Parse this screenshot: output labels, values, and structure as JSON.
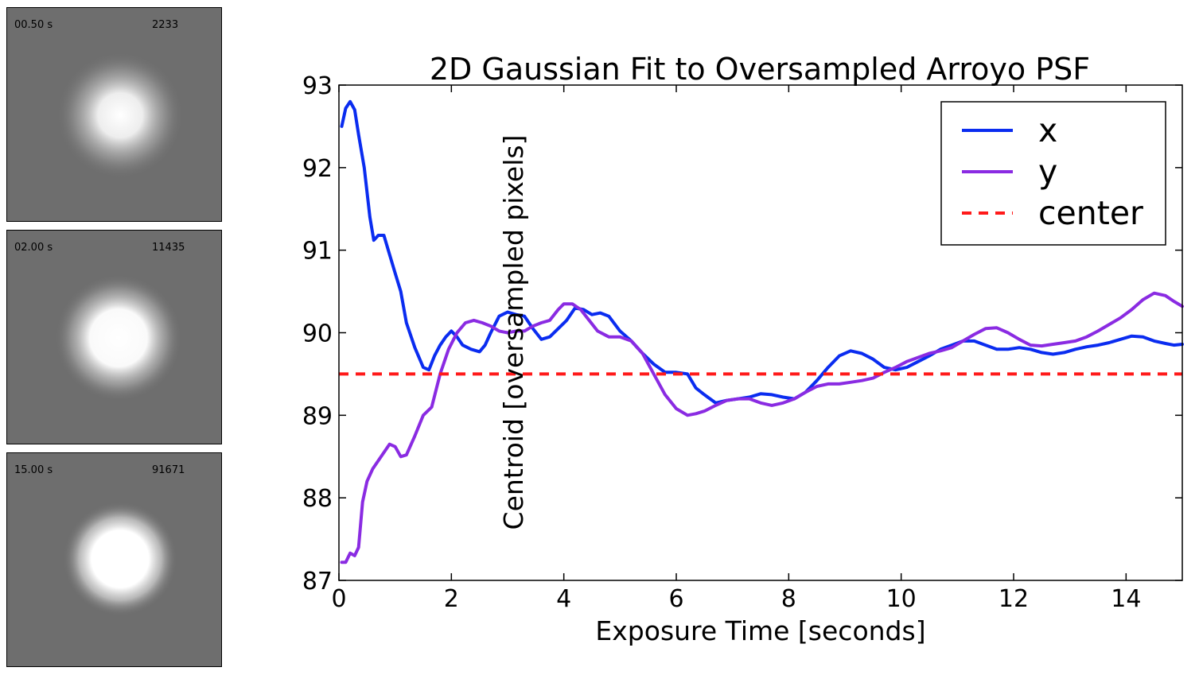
{
  "psf_panels": [
    {
      "time": "00.50 s",
      "count": "2233"
    },
    {
      "time": "02.00 s",
      "count": "11435"
    },
    {
      "time": "15.00 s",
      "count": "91671"
    }
  ],
  "chart_data": {
    "type": "line",
    "title": "2D Gaussian Fit to Oversampled Arroyo PSF",
    "xlabel": "Exposure Time [seconds]",
    "ylabel": "Centroid [oversampled pixels]",
    "xlim": [
      0,
      15
    ],
    "ylim": [
      87,
      93
    ],
    "xticks": [
      0,
      2,
      4,
      6,
      8,
      10,
      12,
      14
    ],
    "yticks": [
      87,
      88,
      89,
      90,
      91,
      92,
      93
    ],
    "grid": false,
    "legend_position": "top-right",
    "series": [
      {
        "name": "x",
        "color": "#0a2cf0",
        "style": "solid",
        "x": [
          0.05,
          0.12,
          0.2,
          0.28,
          0.35,
          0.45,
          0.55,
          0.62,
          0.7,
          0.8,
          0.9,
          1.0,
          1.1,
          1.2,
          1.35,
          1.5,
          1.6,
          1.7,
          1.8,
          1.9,
          2.0,
          2.1,
          2.2,
          2.35,
          2.5,
          2.6,
          2.7,
          2.85,
          3.0,
          3.15,
          3.3,
          3.45,
          3.6,
          3.75,
          3.9,
          4.05,
          4.2,
          4.35,
          4.5,
          4.65,
          4.8,
          5.0,
          5.2,
          5.4,
          5.6,
          5.8,
          6.0,
          6.2,
          6.35,
          6.5,
          6.7,
          6.9,
          7.1,
          7.3,
          7.5,
          7.7,
          7.9,
          8.1,
          8.3,
          8.5,
          8.7,
          8.9,
          9.1,
          9.3,
          9.5,
          9.7,
          9.9,
          10.1,
          10.3,
          10.5,
          10.7,
          10.9,
          11.1,
          11.3,
          11.5,
          11.7,
          11.9,
          12.1,
          12.3,
          12.5,
          12.7,
          12.9,
          13.1,
          13.3,
          13.5,
          13.7,
          13.9,
          14.1,
          14.3,
          14.5,
          14.7,
          14.85,
          15.0
        ],
        "y": [
          92.5,
          92.72,
          92.8,
          92.7,
          92.4,
          92.0,
          91.4,
          91.12,
          91.18,
          91.18,
          90.95,
          90.72,
          90.5,
          90.12,
          89.82,
          89.58,
          89.55,
          89.72,
          89.85,
          89.95,
          90.02,
          89.95,
          89.85,
          89.8,
          89.77,
          89.85,
          90.0,
          90.2,
          90.25,
          90.22,
          90.2,
          90.05,
          89.92,
          89.95,
          90.05,
          90.15,
          90.3,
          90.28,
          90.22,
          90.24,
          90.2,
          90.02,
          89.9,
          89.75,
          89.62,
          89.52,
          89.52,
          89.5,
          89.33,
          89.25,
          89.15,
          89.18,
          89.2,
          89.22,
          89.26,
          89.25,
          89.22,
          89.2,
          89.28,
          89.42,
          89.58,
          89.72,
          89.78,
          89.75,
          89.68,
          89.58,
          89.55,
          89.58,
          89.65,
          89.72,
          89.8,
          89.85,
          89.9,
          89.9,
          89.85,
          89.8,
          89.8,
          89.82,
          89.8,
          89.76,
          89.74,
          89.76,
          89.8,
          89.83,
          89.85,
          89.88,
          89.92,
          89.96,
          89.95,
          89.9,
          89.87,
          89.85,
          89.86
        ]
      },
      {
        "name": "y",
        "color": "#8a2be2",
        "style": "solid",
        "x": [
          0.05,
          0.12,
          0.2,
          0.28,
          0.35,
          0.42,
          0.5,
          0.6,
          0.7,
          0.8,
          0.9,
          1.0,
          1.1,
          1.2,
          1.35,
          1.5,
          1.65,
          1.8,
          1.95,
          2.1,
          2.25,
          2.4,
          2.55,
          2.7,
          2.85,
          3.0,
          3.15,
          3.3,
          3.45,
          3.6,
          3.75,
          3.9,
          4.0,
          4.15,
          4.3,
          4.45,
          4.6,
          4.8,
          5.0,
          5.2,
          5.4,
          5.6,
          5.8,
          6.0,
          6.2,
          6.35,
          6.5,
          6.7,
          6.9,
          7.1,
          7.3,
          7.5,
          7.7,
          7.9,
          8.1,
          8.3,
          8.5,
          8.7,
          8.9,
          9.1,
          9.3,
          9.5,
          9.7,
          9.9,
          10.1,
          10.3,
          10.5,
          10.7,
          10.9,
          11.1,
          11.3,
          11.5,
          11.7,
          11.9,
          12.1,
          12.3,
          12.5,
          12.7,
          12.9,
          13.1,
          13.3,
          13.5,
          13.7,
          13.9,
          14.1,
          14.3,
          14.5,
          14.7,
          14.85,
          15.0
        ],
        "y": [
          87.22,
          87.22,
          87.33,
          87.3,
          87.4,
          87.95,
          88.2,
          88.35,
          88.45,
          88.55,
          88.65,
          88.62,
          88.5,
          88.52,
          88.75,
          89.0,
          89.1,
          89.5,
          89.8,
          90.0,
          90.12,
          90.15,
          90.12,
          90.08,
          90.02,
          90.0,
          90.02,
          90.02,
          90.08,
          90.12,
          90.15,
          90.28,
          90.35,
          90.35,
          90.28,
          90.15,
          90.02,
          89.95,
          89.95,
          89.9,
          89.75,
          89.5,
          89.25,
          89.08,
          89.0,
          89.02,
          89.05,
          89.12,
          89.18,
          89.2,
          89.2,
          89.15,
          89.12,
          89.15,
          89.2,
          89.28,
          89.35,
          89.38,
          89.38,
          89.4,
          89.42,
          89.45,
          89.52,
          89.58,
          89.65,
          89.7,
          89.75,
          89.78,
          89.82,
          89.9,
          89.98,
          90.05,
          90.06,
          90.0,
          89.92,
          89.85,
          89.84,
          89.86,
          89.88,
          89.9,
          89.95,
          90.02,
          90.1,
          90.18,
          90.28,
          90.4,
          90.48,
          90.45,
          90.38,
          90.32
        ]
      },
      {
        "name": "center",
        "color": "#ff1a1a",
        "style": "dashed",
        "x": [
          0,
          15
        ],
        "y": [
          89.5,
          89.5
        ]
      }
    ]
  }
}
